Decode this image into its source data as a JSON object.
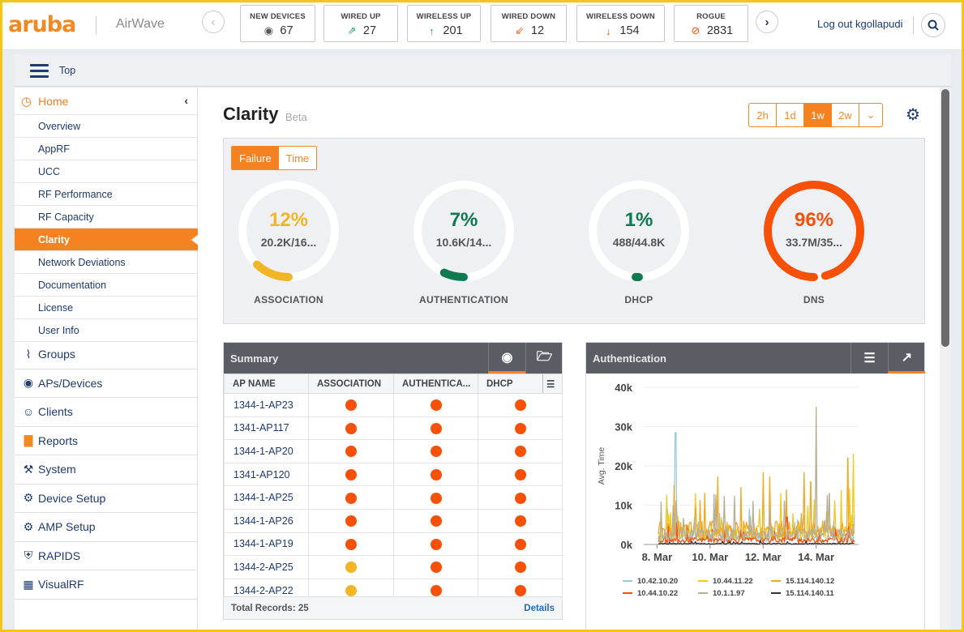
{
  "app": {
    "logo": "aruba",
    "product": "AirWave"
  },
  "stats": [
    {
      "label": "NEW DEVICES",
      "value": "67",
      "icon": "device-icon",
      "icon_color": "#555555"
    },
    {
      "label": "WIRED UP",
      "value": "27",
      "icon": "wired-up-icon",
      "icon_color": "#2ba17e"
    },
    {
      "label": "WIRELESS UP",
      "value": "201",
      "icon": "arrow-up-icon",
      "icon_color": "#2ba17e"
    },
    {
      "label": "WIRED DOWN",
      "value": "12",
      "icon": "wired-down-icon",
      "icon_color": "#f65009"
    },
    {
      "label": "WIRELESS DOWN",
      "value": "154",
      "icon": "arrow-down-icon",
      "icon_color": "#f65009"
    },
    {
      "label": "ROGUE",
      "value": "2831",
      "icon": "rogue-icon",
      "icon_color": "#f65009"
    }
  ],
  "user": {
    "logout_label": "Log out kgollapudi"
  },
  "breadcrumb": {
    "label": "Top"
  },
  "sidebar": {
    "home_label": "Home",
    "sub_items": [
      "Overview",
      "AppRF",
      "UCC",
      "RF Performance",
      "RF Capacity",
      "Clarity",
      "Network Deviations",
      "Documentation",
      "License",
      "User Info"
    ],
    "active_sub": "Clarity",
    "items": [
      {
        "label": "Groups",
        "icon": "wifi-icon"
      },
      {
        "label": "APs/Devices",
        "icon": "eye-icon"
      },
      {
        "label": "Clients",
        "icon": "users-icon"
      },
      {
        "label": "Reports",
        "icon": "bar-chart-icon"
      },
      {
        "label": "System",
        "icon": "wrench-icon"
      },
      {
        "label": "Device Setup",
        "icon": "device-setup-icon"
      },
      {
        "label": "AMP Setup",
        "icon": "amp-setup-icon"
      },
      {
        "label": "RAPIDS",
        "icon": "shield-icon"
      },
      {
        "label": "VisualRF",
        "icon": "floorplan-icon"
      }
    ]
  },
  "page": {
    "title": "Clarity",
    "badge": "Beta",
    "time_ranges": [
      "2h",
      "1d",
      "1w",
      "2w"
    ],
    "active_range": "1w",
    "toggle": [
      "Failure",
      "Time"
    ],
    "active_toggle": "Failure"
  },
  "gauges": [
    {
      "label": "ASSOCIATION",
      "percent": "12%",
      "fraction": 0.12,
      "count": "20.2K/16...",
      "color": "#f2b526"
    },
    {
      "label": "AUTHENTICATION",
      "percent": "7%",
      "fraction": 0.07,
      "count": "10.6K/14...",
      "color": "#0e7a4f"
    },
    {
      "label": "DHCP",
      "percent": "1%",
      "fraction": 0.01,
      "count": "488/44.8K",
      "color": "#0e7a4f"
    },
    {
      "label": "DNS",
      "percent": "96%",
      "fraction": 0.96,
      "count": "33.7M/35...",
      "color": "#f65009"
    }
  ],
  "summary": {
    "title": "Summary",
    "columns": [
      "AP NAME",
      "ASSOCIATION",
      "AUTHENTICA...",
      "DHCP"
    ],
    "rows": [
      {
        "name": "1344-1-AP23",
        "status": [
          "red",
          "red",
          "red"
        ]
      },
      {
        "name": "1341-AP117",
        "status": [
          "red",
          "red",
          "red"
        ]
      },
      {
        "name": "1344-1-AP20",
        "status": [
          "red",
          "red",
          "red"
        ]
      },
      {
        "name": "1341-AP120",
        "status": [
          "red",
          "red",
          "red"
        ]
      },
      {
        "name": "1344-1-AP25",
        "status": [
          "red",
          "red",
          "red"
        ]
      },
      {
        "name": "1344-1-AP26",
        "status": [
          "red",
          "red",
          "red"
        ]
      },
      {
        "name": "1344-1-AP19",
        "status": [
          "red",
          "red",
          "red"
        ]
      },
      {
        "name": "1344-2-AP25",
        "status": [
          "yellow",
          "red",
          "red"
        ]
      },
      {
        "name": "1344-2-AP22",
        "status": [
          "yellow",
          "red",
          "red"
        ]
      }
    ],
    "total_label": "Total Records: 25",
    "details_label": "Details"
  },
  "auth_chart": {
    "title": "Authentication"
  },
  "chart_data": {
    "type": "line",
    "title": "Authentication",
    "ylabel": "Avg. Time",
    "xlabel": "",
    "x_ticks": [
      "8. Mar",
      "10. Mar",
      "12. Mar",
      "14. Mar"
    ],
    "y_ticks": [
      "0k",
      "10k",
      "20k",
      "30k",
      "40k"
    ],
    "ylim": [
      0,
      40000
    ],
    "xlim": [
      "7.5 Mar",
      "15.6 Mar"
    ],
    "series": [
      {
        "name": "10.42.10.20",
        "color": "#9ccad6",
        "peaks": [
          {
            "day": 8.7,
            "value": 28500
          }
        ],
        "typical": 2500
      },
      {
        "name": "10.44.11.22",
        "color": "#f2c820",
        "peaks": [
          {
            "day": 15.4,
            "value": 23000
          }
        ],
        "typical": 4000
      },
      {
        "name": "15.114.140.12",
        "color": "#f0a820",
        "peaks": [
          {
            "day": 13.8,
            "value": 16000
          },
          {
            "day": 15.2,
            "value": 22000
          },
          {
            "day": 9.8,
            "value": 13000
          }
        ],
        "typical": 5000
      },
      {
        "name": "10.44.10.22",
        "color": "#f65009",
        "peaks": [
          {
            "day": 12.9,
            "value": 7000
          }
        ],
        "typical": 1500
      },
      {
        "name": "10.1.1.97",
        "color": "#b8ae96",
        "peaks": [
          {
            "day": 14.0,
            "value": 35000
          },
          {
            "day": 14.5,
            "value": 13000
          },
          {
            "day": 12.8,
            "value": 11000
          }
        ],
        "typical": 3500
      },
      {
        "name": "15.114.140.11",
        "color": "#333333",
        "peaks": [],
        "typical": 300
      }
    ]
  }
}
